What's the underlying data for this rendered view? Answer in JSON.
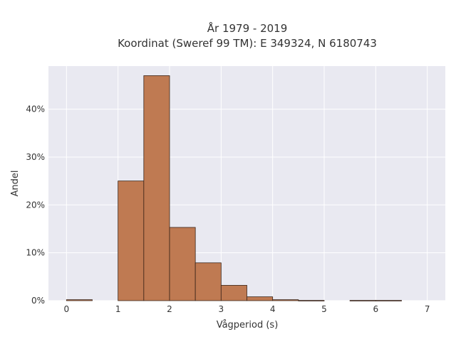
{
  "chart_data": {
    "type": "bar",
    "title": "År 1979 - 2019",
    "subtitle": "Koordinat (Sweref 99 TM): E 349324, N 6180743",
    "xlabel": "Vågperiod (s)",
    "ylabel": "Andel",
    "xlim": [
      -0.35,
      7.35
    ],
    "ylim": [
      0,
      49
    ],
    "x_ticks": [
      0,
      1,
      2,
      3,
      4,
      5,
      6,
      7
    ],
    "y_ticks": [
      0,
      10,
      20,
      30,
      40
    ],
    "y_tick_labels": [
      "0%",
      "10%",
      "20%",
      "30%",
      "40%"
    ],
    "bin_width": 0.5,
    "bins": [
      {
        "x0": 0.0,
        "value": 0.2
      },
      {
        "x0": 0.5,
        "value": 0.0
      },
      {
        "x0": 1.0,
        "value": 25.0
      },
      {
        "x0": 1.5,
        "value": 47.0
      },
      {
        "x0": 2.0,
        "value": 15.3
      },
      {
        "x0": 2.5,
        "value": 7.9
      },
      {
        "x0": 3.0,
        "value": 3.2
      },
      {
        "x0": 3.5,
        "value": 0.8
      },
      {
        "x0": 4.0,
        "value": 0.2
      },
      {
        "x0": 4.5,
        "value": 0.05
      },
      {
        "x0": 5.0,
        "value": 0.0
      },
      {
        "x0": 5.5,
        "value": 0.05
      },
      {
        "x0": 6.0,
        "value": 0.05
      }
    ],
    "grid": true,
    "legend": "none",
    "colors": {
      "bar_fill": "#bf7a52",
      "bar_edge": "#3a2418",
      "plot_background": "#e9e9f1",
      "grid": "#ffffff"
    }
  }
}
